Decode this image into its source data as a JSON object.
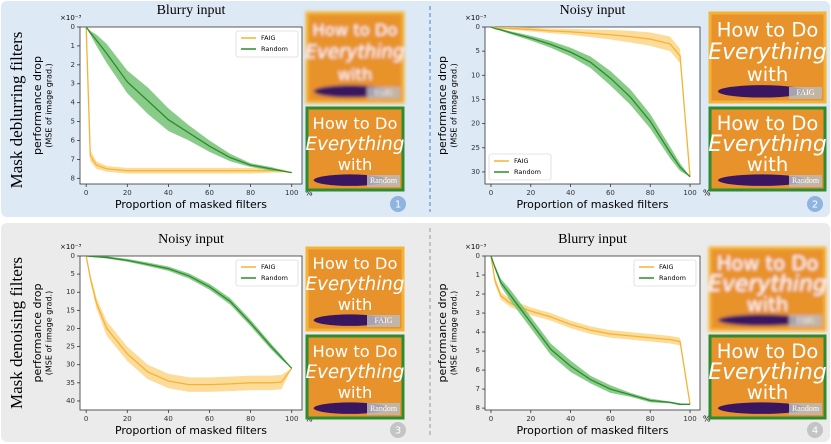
{
  "row_labels": [
    "Mask deblurring filters",
    "Mask denoising filters"
  ],
  "thumbnail_text": [
    "How to Do",
    "Everything",
    "with"
  ],
  "panel_labels": [
    "1",
    "2",
    "3",
    "4"
  ],
  "chart_data": [
    {
      "type": "line",
      "title": "Blurry input",
      "x_label": "Proportion of masked filters",
      "x_unit": "%",
      "y_label": [
        "performance drop",
        "(MSE of image grad.)"
      ],
      "y_multiplier": "×10⁻³",
      "xlim": [
        -3,
        105
      ],
      "xticks": [
        0,
        20,
        40,
        60,
        80,
        100
      ],
      "ylim": [
        0,
        8.3
      ],
      "yticks": [
        0,
        1,
        2,
        3,
        4,
        5,
        6,
        7,
        8
      ],
      "y_inverted": true,
      "legend": "upper right",
      "x": [
        0,
        2,
        5,
        10,
        20,
        30,
        40,
        50,
        60,
        70,
        80,
        90,
        95,
        100
      ],
      "series": [
        {
          "name": "FAIG",
          "color": "#f5b335",
          "band_color": "#fdd688",
          "values": [
            0,
            6.8,
            7.3,
            7.5,
            7.6,
            7.6,
            7.6,
            7.6,
            7.6,
            7.6,
            7.6,
            7.6,
            7.6,
            7.7
          ],
          "error": [
            0,
            0.3,
            0.2,
            0.15,
            0.15,
            0.15,
            0.15,
            0.15,
            0.15,
            0.15,
            0.15,
            0.1,
            0.1,
            0
          ]
        },
        {
          "name": "Random",
          "color": "#2e8b2e",
          "band_color": "#74c274",
          "values": [
            0,
            0.3,
            0.7,
            1.4,
            2.9,
            3.9,
            4.9,
            5.6,
            6.3,
            6.9,
            7.3,
            7.5,
            7.6,
            7.7
          ],
          "error": [
            0,
            0.1,
            0.3,
            0.5,
            0.6,
            0.7,
            0.6,
            0.4,
            0.3,
            0.2,
            0.1,
            0.1,
            0.05,
            0
          ]
        }
      ]
    },
    {
      "type": "line",
      "title": "Noisy input",
      "x_label": "Proportion of masked filters",
      "x_unit": "%",
      "y_label": [
        "performance drop",
        "(MSE of image grad.)"
      ],
      "y_multiplier": "×10⁻³",
      "xlim": [
        -3,
        105
      ],
      "xticks": [
        0,
        20,
        40,
        60,
        80,
        100
      ],
      "ylim": [
        0,
        32.5
      ],
      "yticks": [
        0,
        5,
        10,
        15,
        20,
        25,
        30
      ],
      "y_inverted": true,
      "legend": "lower left",
      "x": [
        0,
        2,
        5,
        10,
        20,
        30,
        40,
        50,
        60,
        70,
        80,
        90,
        95,
        100
      ],
      "series": [
        {
          "name": "FAIG",
          "color": "#f5b335",
          "band_color": "#fdd688",
          "values": [
            0,
            0.1,
            0.2,
            0.3,
            0.5,
            0.8,
            1.0,
            1.3,
            1.6,
            2.0,
            2.5,
            3.5,
            6,
            31
          ],
          "error": [
            0,
            0.1,
            0.2,
            0.3,
            0.4,
            0.5,
            0.6,
            0.8,
            1,
            1.2,
            1.4,
            1.5,
            1.5,
            0
          ]
        },
        {
          "name": "Random",
          "color": "#2e8b2e",
          "band_color": "#74c274",
          "values": [
            0,
            0.3,
            0.6,
            1.2,
            2.3,
            3.6,
            5.2,
            7.3,
            10.6,
            14.5,
            19.5,
            26,
            29,
            31
          ],
          "error": [
            0,
            0.1,
            0.2,
            0.3,
            0.5,
            0.7,
            0.9,
            1.2,
            1.5,
            1.6,
            1.5,
            1.2,
            0.8,
            0
          ]
        }
      ]
    },
    {
      "type": "line",
      "title": "Noisy input",
      "x_label": "Proportion of masked filters",
      "x_unit": "%",
      "y_label": [
        "performance drop",
        "(MSE of image grad.)"
      ],
      "y_multiplier": "×10⁻³",
      "xlim": [
        -3,
        105
      ],
      "xticks": [
        0,
        20,
        40,
        60,
        80,
        100
      ],
      "ylim": [
        0,
        42.5
      ],
      "yticks": [
        0,
        5,
        10,
        15,
        20,
        25,
        30,
        35,
        40
      ],
      "y_inverted": true,
      "legend": "upper right",
      "x": [
        0,
        2,
        5,
        10,
        20,
        30,
        40,
        50,
        60,
        70,
        80,
        90,
        95,
        100
      ],
      "series": [
        {
          "name": "FAIG",
          "color": "#f5b335",
          "band_color": "#fdd688",
          "values": [
            0,
            6,
            13,
            20,
            27,
            32,
            34.5,
            35.5,
            35.5,
            35.3,
            35,
            35,
            34.8,
            31
          ],
          "error": [
            0,
            1,
            1.5,
            2,
            2,
            2,
            2,
            2,
            2,
            2,
            2,
            2,
            2,
            0
          ]
        },
        {
          "name": "Random",
          "color": "#2e8b2e",
          "band_color": "#74c274",
          "values": [
            0,
            0.1,
            0.2,
            0.4,
            1.2,
            2.3,
            3.5,
            5.5,
            8.5,
            12.5,
            18.5,
            25,
            28,
            31
          ],
          "error": [
            0,
            0.1,
            0.2,
            0.3,
            0.4,
            0.5,
            0.6,
            0.7,
            0.8,
            0.9,
            0.9,
            0.8,
            0.6,
            0
          ]
        }
      ]
    },
    {
      "type": "line",
      "title": "Blurry input",
      "x_label": "Proportion of masked filters",
      "x_unit": "%",
      "y_label": [
        "performance drop",
        "(MSE of image grad.)"
      ],
      "y_multiplier": "×10⁻³",
      "xlim": [
        -3,
        105
      ],
      "xticks": [
        0,
        20,
        40,
        60,
        80,
        100
      ],
      "ylim": [
        0,
        8.1
      ],
      "yticks": [
        0,
        1,
        2,
        3,
        4,
        5,
        6,
        7,
        8
      ],
      "y_inverted": true,
      "legend": "upper right",
      "x": [
        0,
        2,
        5,
        10,
        20,
        30,
        40,
        50,
        60,
        70,
        80,
        90,
        95,
        100
      ],
      "series": [
        {
          "name": "FAIG",
          "color": "#f5b335",
          "band_color": "#fdd688",
          "values": [
            0,
            1.3,
            2.1,
            2.5,
            2.9,
            3.2,
            3.6,
            3.9,
            4.1,
            4.2,
            4.3,
            4.4,
            4.5,
            7.8
          ],
          "error": [
            0,
            0.2,
            0.2,
            0.2,
            0.2,
            0.2,
            0.2,
            0.2,
            0.2,
            0.2,
            0.2,
            0.2,
            0.2,
            0
          ]
        },
        {
          "name": "Random",
          "color": "#2e8b2e",
          "band_color": "#74c274",
          "values": [
            0,
            0.6,
            1.4,
            2.1,
            3.5,
            4.9,
            5.8,
            6.5,
            7.0,
            7.3,
            7.6,
            7.7,
            7.8,
            7.8
          ],
          "error": [
            0,
            0.1,
            0.2,
            0.3,
            0.3,
            0.3,
            0.3,
            0.2,
            0.2,
            0.1,
            0.1,
            0.05,
            0.05,
            0
          ]
        }
      ]
    }
  ]
}
